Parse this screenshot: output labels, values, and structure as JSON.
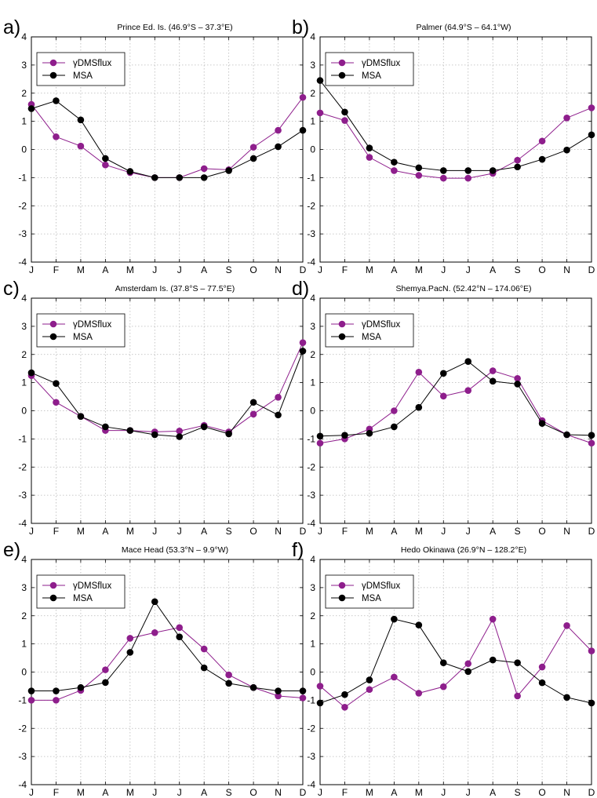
{
  "months": [
    "J",
    "F",
    "M",
    "A",
    "M",
    "J",
    "J",
    "A",
    "S",
    "O",
    "N",
    "D"
  ],
  "colors": {
    "dms": "#8e1e8c",
    "msa": "#000000",
    "grid": "#b8b8b8",
    "axis": "#000000"
  },
  "chart_data": [
    {
      "type": "line",
      "panel_label": "a)",
      "title": "Prince Ed. Is. (46.9°S – 37.3°E)",
      "categories": [
        "J",
        "F",
        "M",
        "A",
        "M",
        "J",
        "J",
        "A",
        "S",
        "O",
        "N",
        "D"
      ],
      "ylim": [
        -4,
        4
      ],
      "yticks": [
        -4,
        -3,
        -2,
        -1,
        0,
        1,
        2,
        3,
        4
      ],
      "grid": true,
      "legend_position": "top-left",
      "series": [
        {
          "name": "γDMSflux",
          "color": "#8e1e8c",
          "values": [
            1.6,
            0.45,
            0.12,
            -0.55,
            -0.82,
            -1.0,
            -1.0,
            -0.68,
            -0.72,
            0.08,
            0.68,
            1.85
          ]
        },
        {
          "name": "MSA",
          "color": "#000000",
          "values": [
            1.45,
            1.73,
            1.05,
            -0.32,
            -0.78,
            -1.0,
            -1.0,
            -1.0,
            -0.75,
            -0.32,
            0.1,
            0.68
          ]
        }
      ]
    },
    {
      "type": "line",
      "panel_label": "b)",
      "title": "Palmer (64.9°S – 64.1°W)",
      "categories": [
        "J",
        "F",
        "M",
        "A",
        "M",
        "J",
        "J",
        "A",
        "S",
        "O",
        "N",
        "D"
      ],
      "ylim": [
        -4,
        4
      ],
      "yticks": [
        -4,
        -3,
        -2,
        -1,
        0,
        1,
        2,
        3,
        4
      ],
      "grid": true,
      "legend_position": "top-left",
      "series": [
        {
          "name": "γDMSflux",
          "color": "#8e1e8c",
          "values": [
            1.3,
            1.03,
            -0.28,
            -0.75,
            -0.92,
            -1.02,
            -1.02,
            -0.85,
            -0.38,
            0.3,
            1.12,
            1.48
          ]
        },
        {
          "name": "MSA",
          "color": "#000000",
          "values": [
            2.45,
            1.33,
            0.05,
            -0.45,
            -0.65,
            -0.75,
            -0.75,
            -0.75,
            -0.62,
            -0.35,
            -0.02,
            0.52
          ]
        }
      ]
    },
    {
      "type": "line",
      "panel_label": "c)",
      "title": "Amsterdam Is. (37.8°S – 77.5°E)",
      "categories": [
        "J",
        "F",
        "M",
        "A",
        "M",
        "J",
        "J",
        "A",
        "S",
        "O",
        "N",
        "D"
      ],
      "ylim": [
        -4,
        4
      ],
      "yticks": [
        -4,
        -3,
        -2,
        -1,
        0,
        1,
        2,
        3,
        4
      ],
      "grid": true,
      "legend_position": "top-left",
      "series": [
        {
          "name": "γDMSflux",
          "color": "#8e1e8c",
          "values": [
            1.25,
            0.3,
            -0.2,
            -0.7,
            -0.7,
            -0.75,
            -0.72,
            -0.52,
            -0.75,
            -0.12,
            0.48,
            2.42
          ]
        },
        {
          "name": "MSA",
          "color": "#000000",
          "values": [
            1.35,
            0.97,
            -0.2,
            -0.57,
            -0.7,
            -0.85,
            -0.92,
            -0.57,
            -0.82,
            0.3,
            -0.15,
            2.12
          ]
        }
      ]
    },
    {
      "type": "line",
      "panel_label": "d)",
      "title": "Shemya.PacN. (52.42°N – 174.06°E)",
      "categories": [
        "J",
        "F",
        "M",
        "A",
        "M",
        "J",
        "J",
        "A",
        "S",
        "O",
        "N",
        "D"
      ],
      "ylim": [
        -4,
        4
      ],
      "yticks": [
        -4,
        -3,
        -2,
        -1,
        0,
        1,
        2,
        3,
        4
      ],
      "grid": true,
      "legend_position": "top-left",
      "series": [
        {
          "name": "γDMSflux",
          "color": "#8e1e8c",
          "values": [
            -1.15,
            -1.0,
            -0.65,
            0.0,
            1.37,
            0.52,
            0.72,
            1.42,
            1.15,
            -0.35,
            -0.85,
            -1.15
          ]
        },
        {
          "name": "MSA",
          "color": "#000000",
          "values": [
            -0.9,
            -0.87,
            -0.8,
            -0.57,
            0.12,
            1.33,
            1.75,
            1.05,
            0.95,
            -0.45,
            -0.85,
            -0.87
          ]
        }
      ]
    },
    {
      "type": "line",
      "panel_label": "e)",
      "title": "Mace Head (53.3°N – 9.9°W)",
      "categories": [
        "J",
        "F",
        "M",
        "A",
        "M",
        "J",
        "J",
        "A",
        "S",
        "O",
        "N",
        "D"
      ],
      "ylim": [
        -4,
        4
      ],
      "yticks": [
        -4,
        -3,
        -2,
        -1,
        0,
        1,
        2,
        3,
        4
      ],
      "grid": true,
      "legend_position": "top-left",
      "series": [
        {
          "name": "γDMSflux",
          "color": "#8e1e8c",
          "values": [
            -1.0,
            -1.0,
            -0.65,
            0.08,
            1.2,
            1.4,
            1.58,
            0.82,
            -0.1,
            -0.55,
            -0.85,
            -0.92
          ]
        },
        {
          "name": "MSA",
          "color": "#000000",
          "values": [
            -0.67,
            -0.67,
            -0.55,
            -0.37,
            0.7,
            2.5,
            1.25,
            0.15,
            -0.4,
            -0.55,
            -0.67,
            -0.67
          ]
        }
      ]
    },
    {
      "type": "line",
      "panel_label": "f)",
      "title": "Hedo Okinawa (26.9°N – 128.2°E)",
      "categories": [
        "J",
        "F",
        "M",
        "A",
        "M",
        "J",
        "J",
        "A",
        "S",
        "O",
        "N",
        "D"
      ],
      "ylim": [
        -4,
        4
      ],
      "yticks": [
        -4,
        -3,
        -2,
        -1,
        0,
        1,
        2,
        3,
        4
      ],
      "grid": true,
      "legend_position": "top-left",
      "series": [
        {
          "name": "γDMSflux",
          "color": "#8e1e8c",
          "values": [
            -0.5,
            -1.25,
            -0.62,
            -0.18,
            -0.75,
            -0.52,
            0.3,
            1.88,
            -0.85,
            0.18,
            1.65,
            0.75
          ]
        },
        {
          "name": "MSA",
          "color": "#000000",
          "values": [
            -1.1,
            -0.8,
            -0.28,
            1.88,
            1.67,
            0.33,
            0.02,
            0.43,
            0.33,
            -0.38,
            -0.9,
            -1.1
          ]
        }
      ]
    }
  ]
}
